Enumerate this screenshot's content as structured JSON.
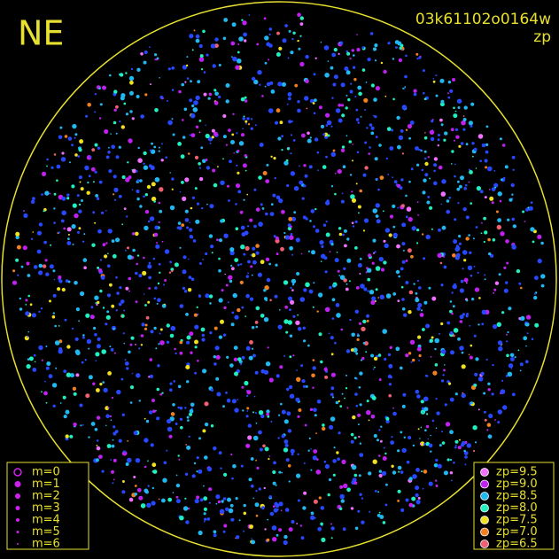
{
  "corner_label": "NE",
  "image_id": "03k61102o0164w",
  "mode": "zp",
  "magnitude_legend": [
    "m=0",
    "m=1",
    "m=2",
    "m=3",
    "m=4",
    "m=5",
    "m=6"
  ],
  "zp_legend": [
    {
      "label": "zp=9.5",
      "color": "#f070ff"
    },
    {
      "label": "zp=9.0",
      "color": "#c020f0"
    },
    {
      "label": "zp=8.5",
      "color": "#20b8f0"
    },
    {
      "label": "zp=8.0",
      "color": "#20f0c0"
    },
    {
      "label": "zp=7.5",
      "color": "#f0e020"
    },
    {
      "label": "zp=7.0",
      "color": "#f08020"
    },
    {
      "label": "zp=6.5",
      "color": "#f06070"
    }
  ]
}
